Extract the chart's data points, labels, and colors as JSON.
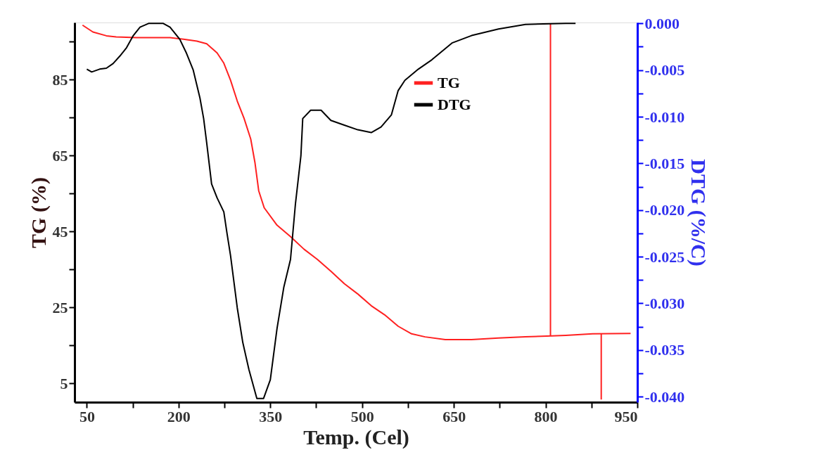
{
  "chart_data": {
    "type": "line",
    "xlabel": "Temp. (Cel)",
    "ylabel": "TG (%)",
    "y2label": "DTG (%/C)",
    "xlim": [
      30,
      950
    ],
    "xticks": [
      50,
      {
        "value": 125,
        "label": null
      },
      200,
      {
        "value": 275,
        "label": null
      },
      350,
      {
        "value": 425,
        "label": null
      },
      500,
      {
        "value": 575,
        "label": null
      },
      650,
      {
        "value": 725,
        "label": null
      },
      800,
      {
        "value": 875,
        "label": null
      },
      950
    ],
    "ylim": [
      0,
      100
    ],
    "yticks": [
      5,
      {
        "value": 15,
        "label": null
      },
      25,
      {
        "value": 35,
        "label": null
      },
      45,
      {
        "value": 55,
        "label": null
      },
      65,
      {
        "value": 75,
        "label": null
      },
      85,
      {
        "value": 95,
        "label": null
      }
    ],
    "y2lim": [
      -0.0406,
      0.0001
    ],
    "y2ticks": [
      {
        "value": 0,
        "label": "0.000"
      },
      {
        "value": -0.0025,
        "label": null
      },
      {
        "value": -0.005,
        "label": "-0.005"
      },
      {
        "value": -0.0075,
        "label": null
      },
      {
        "value": -0.01,
        "label": "-0.010"
      },
      {
        "value": -0.0125,
        "label": null
      },
      {
        "value": -0.015,
        "label": "-0.015"
      },
      {
        "value": -0.0175,
        "label": null
      },
      {
        "value": -0.02,
        "label": "-0.020"
      },
      {
        "value": -0.0225,
        "label": null
      },
      {
        "value": -0.025,
        "label": "-0.025"
      },
      {
        "value": -0.0275,
        "label": null
      },
      {
        "value": -0.03,
        "label": "-0.030"
      },
      {
        "value": -0.0325,
        "label": null
      },
      {
        "value": -0.035,
        "label": "-0.035"
      },
      {
        "value": -0.0375,
        "label": null
      },
      {
        "value": -0.04,
        "label": "-0.040"
      }
    ],
    "legend": "top right",
    "grid": false,
    "line_style": "solid",
    "series": [
      {
        "name": "TG",
        "color": "#ff2020",
        "x": [
          43,
          60,
          82,
          98,
          131,
          186,
          208,
          230,
          246,
          263,
          274,
          285,
          296,
          307,
          318,
          325,
          331,
          340,
          361,
          383,
          405,
          427,
          449,
          471,
          493,
          515,
          537,
          559,
          581,
          603,
          636,
          679,
          723,
          767,
          802,
          833,
          877,
          939
        ],
        "values": [
          99.3,
          97.5,
          96.5,
          96.2,
          96,
          96,
          95.6,
          95.1,
          94.4,
          92,
          89.3,
          84.8,
          79.3,
          74.8,
          69.3,
          63,
          55.7,
          51.2,
          46.6,
          43.6,
          40.3,
          37.6,
          34.5,
          31.2,
          28.5,
          25.4,
          23,
          20,
          18,
          17.2,
          16.5,
          16.5,
          16.9,
          17.2,
          17.4,
          17.6,
          18,
          18.1
        ]
      },
      {
        "name": "DTG",
        "color": "#000000",
        "axis": "y2",
        "x": [
          50,
          58,
          71,
          82,
          93,
          104,
          115,
          126,
          137,
          151,
          175,
          186,
          202,
          213,
          224,
          235,
          241,
          246,
          254,
          263,
          274,
          279,
          285,
          296,
          305,
          315,
          328,
          339,
          350,
          361,
          372,
          383,
          391,
          400,
          403,
          416,
          433,
          449,
          471,
          493,
          515,
          531,
          548,
          559,
          570,
          592,
          614,
          647,
          679,
          723,
          767,
          833,
          849
        ],
        "values": [
          -0.0049,
          -0.0052,
          -0.0049,
          -0.0048,
          -0.0043,
          -0.0035,
          -0.0026,
          -0.0013,
          -0.0004,
          0.0,
          0.0,
          -0.0004,
          -0.0017,
          -0.0032,
          -0.005,
          -0.008,
          -0.0102,
          -0.0128,
          -0.0172,
          -0.0187,
          -0.0202,
          -0.0224,
          -0.0249,
          -0.0305,
          -0.0342,
          -0.0371,
          -0.0402,
          -0.0402,
          -0.0382,
          -0.0327,
          -0.0283,
          -0.0253,
          -0.0194,
          -0.0142,
          -0.0102,
          -0.0093,
          -0.0093,
          -0.0104,
          -0.0109,
          -0.0114,
          -0.0117,
          -0.0111,
          -0.0098,
          -0.0072,
          -0.0061,
          -0.0049,
          -0.0039,
          -0.0021,
          -0.0013,
          -0.0006,
          -0.0001,
          0.0,
          0.0
        ]
      },
      {
        "color": "#ff2020",
        "x": [
          808,
          808
        ],
        "values": [
          99.8,
          17.4
        ]
      },
      {
        "color": "#ff2020",
        "x": [
          891,
          891
        ],
        "values": [
          18,
          0.7
        ]
      }
    ]
  }
}
